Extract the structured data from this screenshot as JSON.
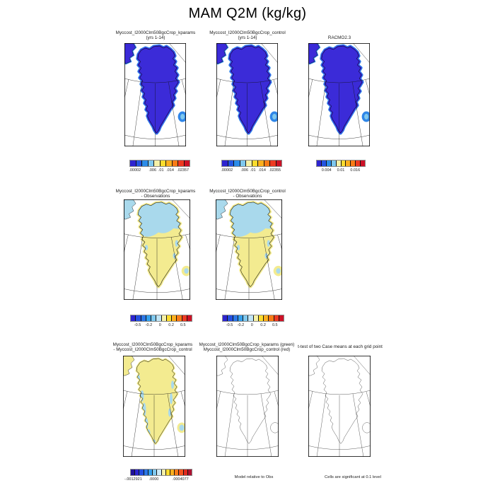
{
  "title": "MAM Q2M (kg/kg)",
  "rows": {
    "r1": {
      "panels": [
        {
          "line1": "Myccost_I2000Clm50BgcCrop_kparams",
          "line2": "(yrs 1-14)"
        },
        {
          "line1": "Myccost_I2000Clm50BgcCrop_control",
          "line2": "(yrs 1-14)"
        },
        {
          "line1": "RACMO2.3",
          "line2": ""
        }
      ]
    },
    "r2": {
      "panels": [
        {
          "line1": "Myccost_I2000Clm50BgcCrop_kparams",
          "line2": "- Observations"
        },
        {
          "line1": "Myccost_I2000Clm50BgcCrop_control",
          "line2": "- Observations"
        }
      ]
    },
    "r3": {
      "panels": [
        {
          "line1": "Myccost_I2000Clm50BgcCrop_kparams",
          "line2": "- Myccost_I2000Clm50BgcCrop_control"
        },
        {
          "line1": "Myccost_I2000Clm50BgcCrop_kparams (green)",
          "line2": "Myccost_I2000Clm50BgcCrop_control (red)"
        },
        {
          "line1": "t-test of two Case means at each grid point",
          "line2": ""
        }
      ]
    }
  },
  "colorbars": {
    "cb1": {
      "colors": [
        "#2d24d0",
        "#2455e2",
        "#2c8ce8",
        "#7fc8ee",
        "#f5f1a8",
        "#fcdc2e",
        "#fcaf1e",
        "#f97b17",
        "#ee3a22",
        "#cc1126"
      ],
      "labels": [
        {
          "t": ".00002",
          "p": 9
        },
        {
          "t": ".006",
          "p": 38
        },
        {
          "t": ".01",
          "p": 52
        },
        {
          "t": ".014",
          "p": 67
        },
        {
          "t": ".02357",
          "p": 88
        }
      ]
    },
    "cb2": {
      "colors": [
        "#2d24d0",
        "#2455e2",
        "#2c8ce8",
        "#7fc8ee",
        "#f5f1a8",
        "#fcdc2e",
        "#fcaf1e",
        "#f97b17",
        "#ee3a22",
        "#cc1126"
      ],
      "labels": [
        {
          "t": ".00002",
          "p": 9
        },
        {
          "t": ".006",
          "p": 38
        },
        {
          "t": ".01",
          "p": 52
        },
        {
          "t": ".014",
          "p": 67
        },
        {
          "t": ".02355",
          "p": 88
        }
      ]
    },
    "cb3": {
      "colors": [
        "#2d24d0",
        "#2455e2",
        "#2c8ce8",
        "#7fc8ee",
        "#f5f1a8",
        "#fcdc2e",
        "#fcaf1e",
        "#f97b17",
        "#ee3a22",
        "#cc1126"
      ],
      "labels": [
        {
          "t": "0.004",
          "p": 21
        },
        {
          "t": "0.01",
          "p": 50
        },
        {
          "t": "0.016",
          "p": 79
        }
      ]
    },
    "cb4": {
      "colors": [
        "#2d24d0",
        "#2450e0",
        "#2c77e6",
        "#35a0ec",
        "#7fc8ee",
        "#bfe4f5",
        "#f5f1a8",
        "#fcdc2e",
        "#fcaf1e",
        "#f97b17",
        "#ee3a22",
        "#cc1126"
      ],
      "labels": [
        {
          "t": "-0.5",
          "p": 12
        },
        {
          "t": "-0.2",
          "p": 30
        },
        {
          "t": "0",
          "p": 48
        },
        {
          "t": "0.2",
          "p": 66
        },
        {
          "t": "0.5",
          "p": 85
        }
      ]
    },
    "cb5": {
      "colors": [
        "#2d24d0",
        "#2450e0",
        "#2c77e6",
        "#35a0ec",
        "#7fc8ee",
        "#bfe4f5",
        "#f5f1a8",
        "#fcdc2e",
        "#fcaf1e",
        "#f97b17",
        "#ee3a22",
        "#cc1126"
      ],
      "labels": [
        {
          "t": "-0.5",
          "p": 12
        },
        {
          "t": "-0.2",
          "p": 30
        },
        {
          "t": "0",
          "p": 48
        },
        {
          "t": "0.2",
          "p": 66
        },
        {
          "t": "0.5",
          "p": 85
        }
      ]
    },
    "cb6": {
      "colors": [
        "#1f1096",
        "#2d24d0",
        "#2450e0",
        "#2c77e6",
        "#35a0ec",
        "#7fc8ee",
        "#cdeaf7",
        "#f5f1a8",
        "#fcdc2e",
        "#fcaf1e",
        "#f97b17",
        "#f4531f",
        "#e02a1f",
        "#ad1030"
      ],
      "labels": [
        {
          "t": "-.0012921",
          "p": 5
        },
        {
          "t": ".0000",
          "p": 38
        },
        {
          "t": ".0004077",
          "p": 81
        }
      ]
    }
  },
  "notes": {
    "model_relative": "Model relative to Obs",
    "cells_significant": "Cells are significant at 0.1 level"
  },
  "map_colors": {
    "greenland_dark_blue": "#3b2bd8",
    "coastal_fringe_blue": "#2f86e8",
    "pale_yellow": "#f3eb90",
    "light_blue": "#a9d9ec",
    "sky_blue": "#7fc8ee"
  },
  "chart_data": [
    {
      "type": "heatmap",
      "title": "Myccost_I2000Clm50BgcCrop_kparams (yrs 1-14)",
      "variable": "MAM Q2M (kg/kg)",
      "region": "Greenland polar stereographic map",
      "colorbar_tick_labels": [
        ".00002",
        ".006",
        ".01",
        ".014",
        ".02357"
      ],
      "fill_summary": "ice sheet uniform dark blue (lowest bin) with light blue coastal fringe"
    },
    {
      "type": "heatmap",
      "title": "Myccost_I2000Clm50BgcCrop_control (yrs 1-14)",
      "variable": "MAM Q2M (kg/kg)",
      "region": "Greenland polar stereographic map",
      "colorbar_tick_labels": [
        ".00002",
        ".006",
        ".01",
        ".014",
        ".02355"
      ],
      "fill_summary": "ice sheet uniform dark blue (lowest bin) with light blue coastal fringe"
    },
    {
      "type": "heatmap",
      "title": "RACMO2.3",
      "variable": "MAM Q2M (kg/kg)",
      "region": "Greenland polar stereographic map",
      "colorbar_tick_labels": [
        "0.004",
        "0.01",
        "0.016"
      ],
      "fill_summary": "ice sheet uniform dark blue (lowest bin) with light blue coastal fringe"
    },
    {
      "type": "heatmap",
      "title": "Myccost_I2000Clm50BgcCrop_kparams - Observations",
      "colorbar_tick_labels": [
        "-0.5",
        "-0.2",
        "0",
        "0.2",
        "0.5"
      ],
      "fill_summary": "northern Greenland light blue (negative), central and southern Greenland pale yellow (slightly positive)"
    },
    {
      "type": "heatmap",
      "title": "Myccost_I2000Clm50BgcCrop_control - Observations",
      "colorbar_tick_labels": [
        "-0.5",
        "-0.2",
        "0",
        "0.2",
        "0.5"
      ],
      "fill_summary": "northern Greenland light blue (negative), central and southern Greenland pale yellow (slightly positive)"
    },
    {
      "type": "heatmap",
      "title": "Myccost_I2000Clm50BgcCrop_kparams - Myccost_I2000Clm50BgcCrop_control",
      "colorbar_tick_labels": [
        "-.0012921",
        ".0000",
        ".0004077"
      ],
      "note": "Model relative to Obs",
      "fill_summary": "mostly pale yellow (near zero) with scattered light blue patches along west and east coasts"
    },
    {
      "type": "heatmap",
      "title": "Myccost_I2000Clm50BgcCrop_kparams (green) / Myccost_I2000Clm50BgcCrop_control (red)",
      "note": "t-test of two Case means at each grid point; Cells are significant at 0.1 level",
      "fill_summary": "empty outline map, no significant cells shaded"
    },
    {
      "type": "heatmap",
      "title": "t-test significance panel (right)",
      "fill_summary": "empty outline map"
    }
  ]
}
